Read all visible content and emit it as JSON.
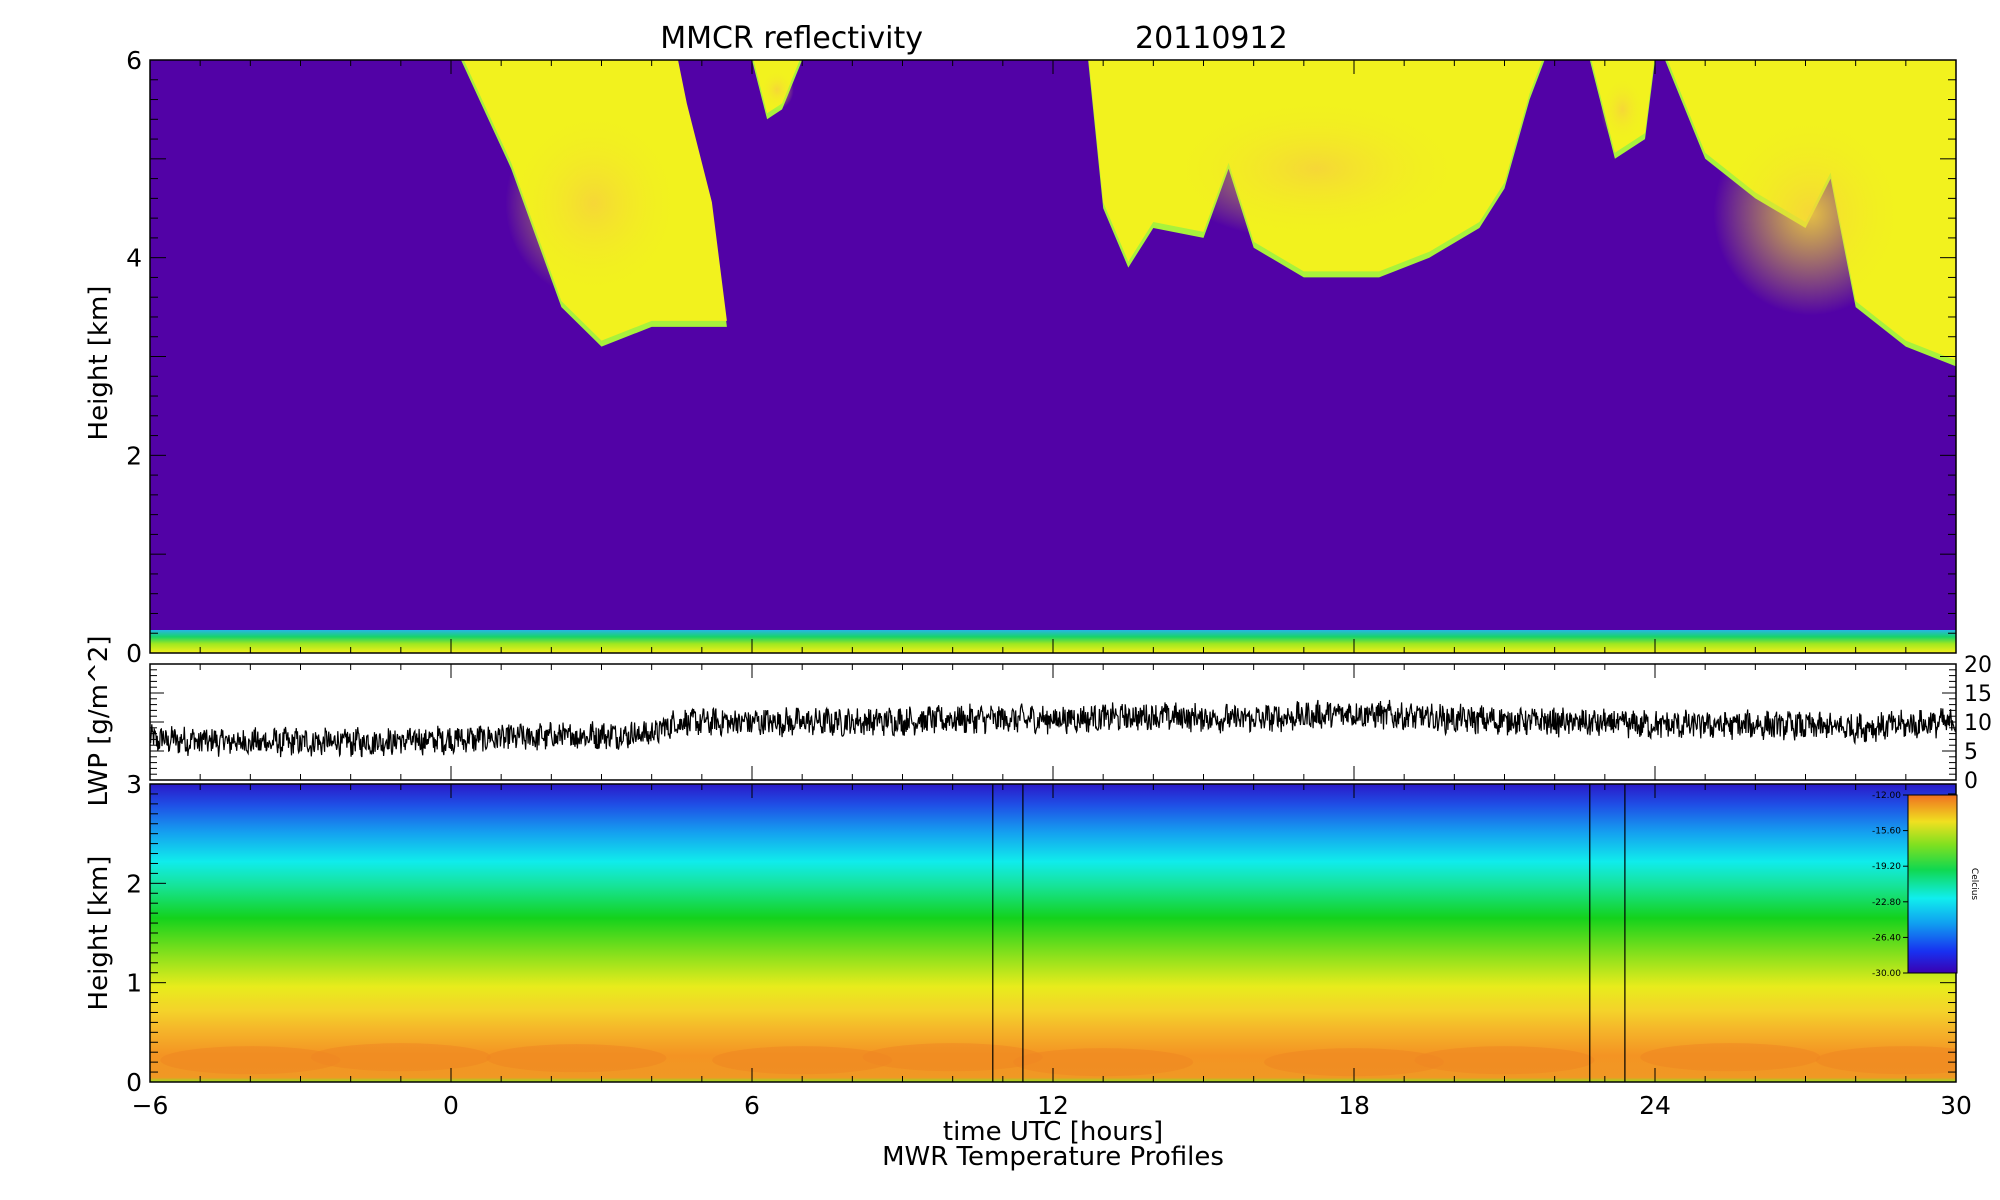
{
  "chart_data": [
    {
      "type": "heatmap",
      "title": "MMCR reflectivity",
      "date": "20110912",
      "ylabel": "Height [km]",
      "xlim": [
        -6,
        30
      ],
      "ylim": [
        0,
        6
      ],
      "yticks": [
        "0",
        "2",
        "4",
        "6"
      ],
      "colors": {
        "background": "#5202a6",
        "cloud_edge": "#a8f23c",
        "cloud_mid": "#f2f21e",
        "cloud_core": "#f6d43a"
      },
      "cloud_boundaries": [
        {
          "name": "cloud-1",
          "points": [
            [
              0.2,
              6.0
            ],
            [
              1.2,
              4.9
            ],
            [
              2.2,
              3.5
            ],
            [
              3.0,
              3.1
            ],
            [
              4.0,
              3.3
            ],
            [
              5.5,
              3.3
            ],
            [
              5.2,
              4.5
            ],
            [
              4.7,
              5.5
            ],
            [
              4.5,
              6.0
            ]
          ]
        },
        {
          "name": "cloud-2",
          "points": [
            [
              6.0,
              6.0
            ],
            [
              6.3,
              5.4
            ],
            [
              6.6,
              5.5
            ],
            [
              7.0,
              6.0
            ]
          ]
        },
        {
          "name": "cloud-3",
          "points": [
            [
              12.7,
              6.0
            ],
            [
              13.0,
              4.5
            ],
            [
              13.5,
              3.9
            ],
            [
              14.0,
              4.3
            ],
            [
              15.0,
              4.2
            ],
            [
              15.5,
              4.9
            ],
            [
              16.0,
              4.1
            ],
            [
              17.0,
              3.8
            ],
            [
              18.5,
              3.8
            ],
            [
              19.5,
              4.0
            ],
            [
              20.5,
              4.3
            ],
            [
              21.0,
              4.7
            ],
            [
              21.5,
              5.6
            ],
            [
              21.8,
              6.0
            ]
          ]
        },
        {
          "name": "cloud-4",
          "points": [
            [
              22.7,
              6.0
            ],
            [
              23.2,
              5.0
            ],
            [
              23.8,
              5.2
            ],
            [
              24.0,
              6.0
            ]
          ]
        },
        {
          "name": "cloud-5",
          "points": [
            [
              24.2,
              6.0
            ],
            [
              25.0,
              5.0
            ],
            [
              26.0,
              4.6
            ],
            [
              27.0,
              4.3
            ],
            [
              27.5,
              4.8
            ],
            [
              28.0,
              3.5
            ],
            [
              29.0,
              3.1
            ],
            [
              30.0,
              2.9
            ],
            [
              30.0,
              6.0
            ]
          ]
        }
      ]
    },
    {
      "type": "line",
      "ylabel": "LWP [g/m^2]",
      "xlim": [
        -6,
        30
      ],
      "ylim": [
        0,
        20
      ],
      "yticks": [
        "0",
        "5",
        "10",
        "15",
        "20"
      ],
      "series": [
        {
          "x": [
            -6,
            -4,
            -2,
            0,
            2,
            4,
            4.5,
            6,
            8,
            10,
            12,
            14,
            16,
            18,
            20,
            22,
            24,
            26,
            28,
            30
          ],
          "values": [
            7,
            6.5,
            6.5,
            7,
            7.5,
            8,
            10,
            10,
            10,
            10.5,
            10.5,
            11,
            10.5,
            11.5,
            10.5,
            10,
            9.5,
            9.5,
            9,
            10
          ]
        }
      ]
    },
    {
      "type": "heatmap",
      "title": "MWR Temperature Profiles",
      "xlabel": "time UTC [hours]",
      "ylabel": "Height [km]",
      "xlim": [
        -6,
        30
      ],
      "ylim": [
        0,
        3
      ],
      "xticks": [
        "-6",
        "0",
        "6",
        "12",
        "18",
        "24",
        "30"
      ],
      "yticks": [
        "0",
        "1",
        "2",
        "3"
      ],
      "colorbar": {
        "label": "Celcius",
        "range": [
          -30,
          -12
        ],
        "ticks": [
          "-12.00",
          "-15.60",
          "-19.20",
          "-22.80",
          "-26.40",
          "-30.00"
        ]
      },
      "gaps": [
        [
          10.8,
          11.4
        ],
        [
          22.7,
          23.4
        ]
      ]
    }
  ]
}
